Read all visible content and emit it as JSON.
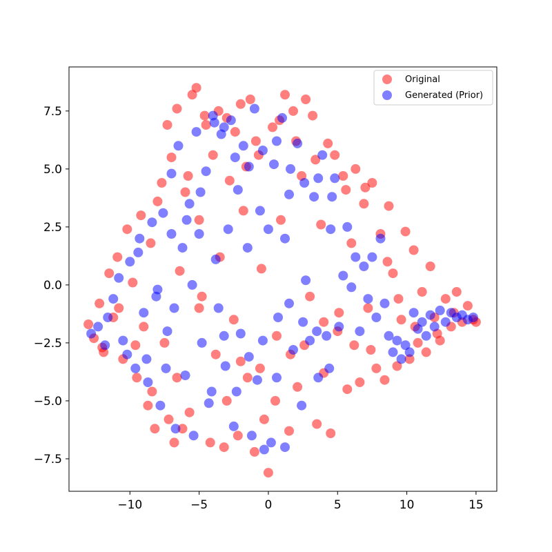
{
  "chart_data": {
    "type": "scatter",
    "title": "",
    "xlabel": "",
    "ylabel": "",
    "xlim": [
      -14.4,
      16.5
    ],
    "ylim": [
      -8.9,
      9.4
    ],
    "x_ticks": [
      -10,
      -5,
      0,
      5,
      10,
      15
    ],
    "y_ticks": [
      -7.5,
      -5.0,
      -2.5,
      0.0,
      2.5,
      5.0,
      7.5
    ],
    "x_tick_labels": [
      "−10",
      "−5",
      "0",
      "5",
      "10",
      "15"
    ],
    "y_tick_labels": [
      "−7.5",
      "−5.0",
      "−2.5",
      "0.0",
      "2.5",
      "5.0",
      "7.5"
    ],
    "grid": false,
    "legend_position": "top-right",
    "series": [
      {
        "name": "Original",
        "color": "#ff0000",
        "alpha": 0.5,
        "points": [
          [
            -13.0,
            -1.7
          ],
          [
            -12.6,
            -2.3
          ],
          [
            -12.2,
            -0.8
          ],
          [
            -11.9,
            -2.9
          ],
          [
            -11.5,
            0.5
          ],
          [
            -11.2,
            -1.4
          ],
          [
            -10.9,
            1.2
          ],
          [
            -10.5,
            -3.2
          ],
          [
            -10.2,
            2.4
          ],
          [
            -9.8,
            0.1
          ],
          [
            -9.5,
            -4.0
          ],
          [
            -9.2,
            3.0
          ],
          [
            -9.0,
            -1.8
          ],
          [
            -8.7,
            -5.2
          ],
          [
            -8.5,
            1.8
          ],
          [
            -8.2,
            -6.2
          ],
          [
            -8.0,
            3.6
          ],
          [
            -7.7,
            4.4
          ],
          [
            -7.5,
            -2.5
          ],
          [
            -7.3,
            6.9
          ],
          [
            -7.0,
            5.5
          ],
          [
            -6.8,
            -6.8
          ],
          [
            -6.6,
            7.6
          ],
          [
            -6.4,
            0.6
          ],
          [
            -6.0,
            4.0
          ],
          [
            -5.7,
            -5.5
          ],
          [
            -5.5,
            8.2
          ],
          [
            -5.2,
            8.5
          ],
          [
            -5.0,
            2.8
          ],
          [
            -4.8,
            -0.5
          ],
          [
            -4.5,
            6.9
          ],
          [
            -4.2,
            -6.8
          ],
          [
            -4.0,
            5.6
          ],
          [
            -3.8,
            -3.0
          ],
          [
            -3.5,
            1.2
          ],
          [
            -3.2,
            -7.0
          ],
          [
            -3.0,
            7.2
          ],
          [
            -2.8,
            4.5
          ],
          [
            -2.5,
            -1.5
          ],
          [
            -2.2,
            -6.5
          ],
          [
            -2.0,
            7.8
          ],
          [
            -1.8,
            3.2
          ],
          [
            -1.5,
            -4.0
          ],
          [
            -1.3,
            8.0
          ],
          [
            -1.0,
            -7.2
          ],
          [
            -0.7,
            5.6
          ],
          [
            -0.5,
            0.7
          ],
          [
            -0.3,
            -5.8
          ],
          [
            0.0,
            -8.1
          ],
          [
            0.3,
            6.8
          ],
          [
            0.6,
            -2.2
          ],
          [
            0.9,
            2.8
          ],
          [
            1.2,
            8.2
          ],
          [
            1.5,
            -6.3
          ],
          [
            1.8,
            7.5
          ],
          [
            2.1,
            -4.4
          ],
          [
            2.4,
            4.7
          ],
          [
            2.7,
            8.0
          ],
          [
            3.0,
            -0.5
          ],
          [
            3.2,
            7.3
          ],
          [
            3.5,
            -6.0
          ],
          [
            3.8,
            2.6
          ],
          [
            4.0,
            -3.8
          ],
          [
            4.3,
            6.1
          ],
          [
            4.5,
            -6.4
          ],
          [
            4.8,
            5.6
          ],
          [
            5.1,
            -1.2
          ],
          [
            5.4,
            4.7
          ],
          [
            5.7,
            -4.5
          ],
          [
            6.0,
            1.8
          ],
          [
            6.3,
            5.0
          ],
          [
            6.6,
            -4.2
          ],
          [
            6.9,
            3.5
          ],
          [
            7.2,
            -1.0
          ],
          [
            7.5,
            4.4
          ],
          [
            7.8,
            -3.6
          ],
          [
            8.1,
            2.2
          ],
          [
            8.4,
            -4.1
          ],
          [
            8.7,
            3.4
          ],
          [
            9.0,
            0.5
          ],
          [
            9.3,
            -3.5
          ],
          [
            9.6,
            -1.5
          ],
          [
            9.9,
            2.3
          ],
          [
            10.2,
            -3.2
          ],
          [
            10.5,
            1.5
          ],
          [
            10.8,
            -2.5
          ],
          [
            11.1,
            -0.3
          ],
          [
            11.4,
            -2.9
          ],
          [
            11.7,
            0.8
          ],
          [
            12.0,
            -1.4
          ],
          [
            12.4,
            -2.4
          ],
          [
            12.8,
            -0.6
          ],
          [
            13.2,
            -1.8
          ],
          [
            13.6,
            -0.3
          ],
          [
            14.0,
            -1.6
          ],
          [
            14.4,
            -0.9
          ],
          [
            14.8,
            -1.5
          ],
          [
            15.0,
            -1.6
          ],
          [
            -12.0,
            -2.7
          ],
          [
            -10.8,
            -1.0
          ],
          [
            -9.6,
            -2.6
          ],
          [
            -8.4,
            -4.6
          ],
          [
            -7.2,
            -5.8
          ],
          [
            -6.2,
            -6.2
          ],
          [
            -5.8,
            4.7
          ],
          [
            -4.6,
            7.3
          ],
          [
            -3.6,
            7.5
          ],
          [
            -2.4,
            6.6
          ],
          [
            -1.6,
            5.1
          ],
          [
            -0.9,
            6.2
          ],
          [
            0.8,
            7.1
          ],
          [
            2.0,
            6.2
          ],
          [
            3.4,
            5.4
          ],
          [
            5.6,
            4.1
          ],
          [
            7.0,
            4.2
          ],
          [
            8.6,
            1.0
          ],
          [
            9.4,
            -0.6
          ],
          [
            10.6,
            -1.8
          ],
          [
            12.2,
            -2.1
          ],
          [
            13.4,
            -1.2
          ],
          [
            -3.0,
            -5.0
          ],
          [
            -2.0,
            -3.3
          ],
          [
            -0.6,
            -3.6
          ],
          [
            0.5,
            -5.0
          ],
          [
            1.6,
            -3.0
          ],
          [
            2.6,
            -2.6
          ],
          [
            4.0,
            -1.6
          ],
          [
            5.0,
            -2.0
          ],
          [
            6.2,
            -2.6
          ],
          [
            7.4,
            -2.8
          ],
          [
            -6.6,
            -4.0
          ],
          [
            -5.0,
            -1.0
          ]
        ]
      },
      {
        "name": "Generated (Prior)",
        "color": "#0000ff",
        "alpha": 0.5,
        "points": [
          [
            -12.8,
            -2.1
          ],
          [
            -12.3,
            -1.8
          ],
          [
            -11.8,
            -2.6
          ],
          [
            -11.2,
            -0.6
          ],
          [
            -10.8,
            0.3
          ],
          [
            -10.5,
            -2.4
          ],
          [
            -10.0,
            1.0
          ],
          [
            -9.6,
            -3.6
          ],
          [
            -9.3,
            2.0
          ],
          [
            -9.0,
            -1.2
          ],
          [
            -8.7,
            -4.2
          ],
          [
            -8.4,
            2.7
          ],
          [
            -8.1,
            -0.5
          ],
          [
            -7.8,
            -5.2
          ],
          [
            -7.6,
            3.1
          ],
          [
            -7.3,
            -2.0
          ],
          [
            -7.0,
            4.8
          ],
          [
            -6.7,
            -6.2
          ],
          [
            -6.5,
            6.0
          ],
          [
            -6.2,
            1.6
          ],
          [
            -6.0,
            -3.9
          ],
          [
            -5.7,
            3.5
          ],
          [
            -5.4,
            -6.5
          ],
          [
            -5.2,
            6.6
          ],
          [
            -5.0,
            2.2
          ],
          [
            -4.8,
            -2.5
          ],
          [
            -4.5,
            4.9
          ],
          [
            -4.3,
            -5.1
          ],
          [
            -4.0,
            7.3
          ],
          [
            -3.8,
            1.1
          ],
          [
            -3.6,
            -1.0
          ],
          [
            -3.4,
            6.5
          ],
          [
            -3.1,
            -3.5
          ],
          [
            -2.9,
            2.4
          ],
          [
            -2.7,
            7.1
          ],
          [
            -2.5,
            -6.1
          ],
          [
            -2.2,
            4.1
          ],
          [
            -2.0,
            -2.1
          ],
          [
            -1.8,
            6.0
          ],
          [
            -1.5,
            1.6
          ],
          [
            -1.2,
            -6.5
          ],
          [
            -1.0,
            7.6
          ],
          [
            -0.8,
            -4.1
          ],
          [
            -0.6,
            3.2
          ],
          [
            -0.3,
            -7.1
          ],
          [
            0.0,
            2.4
          ],
          [
            0.2,
            -6.8
          ],
          [
            0.4,
            5.2
          ],
          [
            0.7,
            -1.4
          ],
          [
            1.0,
            7.2
          ],
          [
            1.2,
            -7.0
          ],
          [
            1.5,
            3.9
          ],
          [
            1.8,
            -2.8
          ],
          [
            2.1,
            6.1
          ],
          [
            2.4,
            -5.2
          ],
          [
            2.7,
            0.2
          ],
          [
            3.0,
            -2.4
          ],
          [
            3.3,
            3.8
          ],
          [
            3.6,
            -4.0
          ],
          [
            3.9,
            5.6
          ],
          [
            4.2,
            -2.2
          ],
          [
            4.5,
            2.4
          ],
          [
            4.8,
            4.6
          ],
          [
            5.1,
            -1.8
          ],
          [
            5.4,
            0.4
          ],
          [
            5.7,
            2.5
          ],
          [
            6.0,
            -0.1
          ],
          [
            6.3,
            1.2
          ],
          [
            6.6,
            -2.0
          ],
          [
            6.9,
            0.8
          ],
          [
            7.2,
            -0.6
          ],
          [
            7.5,
            1.2
          ],
          [
            7.8,
            -1.4
          ],
          [
            8.1,
            2.0
          ],
          [
            8.4,
            -0.8
          ],
          [
            8.7,
            -2.2
          ],
          [
            9.0,
            -2.9
          ],
          [
            9.3,
            -2.4
          ],
          [
            9.6,
            -3.2
          ],
          [
            9.9,
            -2.6
          ],
          [
            10.2,
            -2.9
          ],
          [
            10.5,
            -1.2
          ],
          [
            10.8,
            -1.9
          ],
          [
            11.1,
            -1.6
          ],
          [
            11.4,
            -2.2
          ],
          [
            11.7,
            -1.3
          ],
          [
            12.0,
            -1.8
          ],
          [
            12.4,
            -1.1
          ],
          [
            12.8,
            -1.6
          ],
          [
            13.2,
            -1.2
          ],
          [
            13.6,
            -1.4
          ],
          [
            14.0,
            -1.3
          ],
          [
            14.4,
            -1.5
          ],
          [
            14.8,
            -1.4
          ],
          [
            -11.6,
            -1.4
          ],
          [
            -10.2,
            -3.0
          ],
          [
            -8.8,
            -3.2
          ],
          [
            -7.4,
            -3.6
          ],
          [
            -6.8,
            -1.0
          ],
          [
            -5.9,
            2.8
          ],
          [
            -4.9,
            4.0
          ],
          [
            -3.9,
            7.0
          ],
          [
            -3.2,
            6.8
          ],
          [
            -2.4,
            5.5
          ],
          [
            -1.4,
            5.1
          ],
          [
            -0.4,
            5.8
          ],
          [
            0.6,
            6.2
          ],
          [
            1.6,
            5.0
          ],
          [
            2.6,
            4.4
          ],
          [
            3.6,
            4.6
          ],
          [
            4.6,
            3.8
          ],
          [
            -4.1,
            -4.6
          ],
          [
            -3.2,
            -2.2
          ],
          [
            -2.3,
            -4.6
          ],
          [
            -1.4,
            -3.1
          ],
          [
            -0.4,
            -2.4
          ],
          [
            0.6,
            -4.0
          ],
          [
            1.5,
            -0.8
          ],
          [
            2.5,
            -1.6
          ],
          [
            3.5,
            -2.0
          ],
          [
            4.4,
            -3.6
          ],
          [
            -8.0,
            -0.2
          ],
          [
            -7.0,
            2.2
          ],
          [
            -5.5,
            0.0
          ],
          [
            -9.4,
            1.4
          ],
          [
            1.2,
            2.0
          ]
        ]
      }
    ]
  }
}
